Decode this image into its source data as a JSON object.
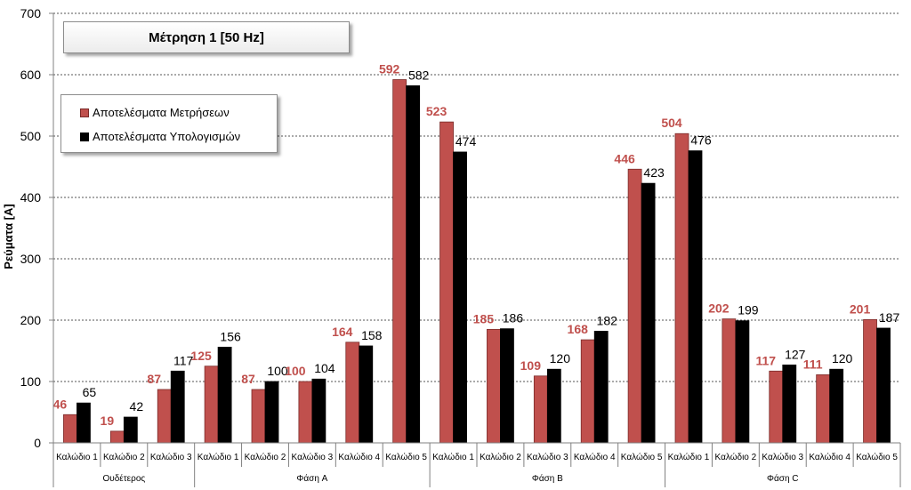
{
  "chart_data": {
    "type": "bar",
    "title": "Μέτρηση 1 [50 Hz]",
    "ylabel": "Ρεύματα [A]",
    "ylim": [
      0,
      700
    ],
    "yticks": [
      0,
      100,
      200,
      300,
      400,
      500,
      600,
      700
    ],
    "grid": true,
    "legend_position": "top-left",
    "groups": [
      {
        "name": "Ουδέτερος",
        "categories": [
          "Καλώδιο 1",
          "Καλώδιο 2",
          "Καλώδιο 3"
        ]
      },
      {
        "name": "Φάση A",
        "categories": [
          "Καλώδιο 1",
          "Καλώδιο 2",
          "Καλώδιο 3",
          "Καλώδιο 4",
          "Καλώδιο 5"
        ]
      },
      {
        "name": "Φάση B",
        "categories": [
          "Καλώδιο 1",
          "Καλώδιο 2",
          "Καλώδιο 3",
          "Καλώδιο 4",
          "Καλώδιο 5"
        ]
      },
      {
        "name": "Φάση C",
        "categories": [
          "Καλώδιο 1",
          "Καλώδιο 2",
          "Καλώδιο 3",
          "Καλώδιο 4",
          "Καλώδιο 5"
        ]
      }
    ],
    "series": [
      {
        "name": "Αποτελέσματα Μετρήσεων",
        "color": "#c0504d",
        "label_color": "#c0504d",
        "values": [
          46,
          19,
          87,
          125,
          87,
          100,
          164,
          592,
          523,
          185,
          109,
          168,
          446,
          504,
          202,
          117,
          111,
          201
        ]
      },
      {
        "name": "Αποτελέσματα Υπολογισμών",
        "color": "#000000",
        "label_color": "#000000",
        "values": [
          65,
          42,
          117,
          156,
          100,
          104,
          158,
          582,
          474,
          186,
          120,
          182,
          423,
          476,
          199,
          127,
          120,
          187
        ]
      }
    ]
  }
}
